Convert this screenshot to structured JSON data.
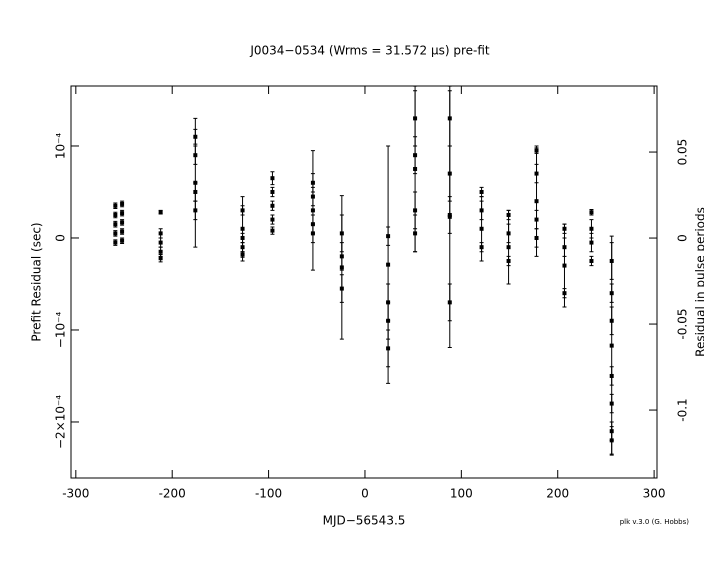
{
  "chart_data": {
    "type": "scatter",
    "title": "J0034−0534 (Wrms = 31.572 μs) pre-fit",
    "xlabel": "MJD−56543.5",
    "ylabel": "Prefit Residual (sec)",
    "y2label": "Residual in pulse periods",
    "footer": "plk v.3.0 (G. Hobbs)",
    "color": "#000000",
    "xlim": [
      -305,
      303
    ],
    "ylim": [
      0.0001652,
      -0.0002609
    ],
    "y2lim": [
      0.0884,
      -0.1395
    ],
    "xticks": [
      -300,
      -200,
      -100,
      0,
      100,
      200,
      300
    ],
    "yticks": [
      {
        "value": 0.0001,
        "label": "10⁻⁴"
      },
      0,
      {
        "value": -0.0001,
        "label": "−10⁻⁴"
      },
      {
        "value": -0.0002,
        "label": "−2×10⁻⁴"
      }
    ],
    "y2ticks": [
      0.05,
      0,
      -0.05,
      -0.1
    ],
    "x": [
      -259,
      -259,
      -259,
      -259,
      -259,
      -252,
      -252,
      -252,
      -252,
      -252,
      -212,
      -212,
      -212,
      -212,
      -212,
      -176,
      -176,
      -176,
      -176,
      -176,
      -127,
      -127,
      -127,
      -127,
      -127,
      -96,
      -96,
      -96,
      -96,
      -96,
      -54,
      -54,
      -54,
      -54,
      -54,
      -24,
      -24,
      -24,
      -24,
      24,
      24,
      24,
      24,
      24,
      52,
      52,
      52,
      52,
      52,
      88,
      88,
      88,
      88,
      88,
      121,
      121,
      121,
      121,
      149,
      149,
      149,
      149,
      178,
      178,
      178,
      178,
      178,
      207,
      207,
      207,
      207,
      235,
      235,
      235,
      235,
      256,
      256,
      256,
      256,
      256,
      256,
      256,
      256
    ],
    "values": [
      3.5e-05,
      2.5e-05,
      1.5e-05,
      5e-06,
      -5e-06,
      3.7e-05,
      2.7e-05,
      1.7e-05,
      7e-06,
      -3e-06,
      2.8e-05,
      5e-06,
      -5e-06,
      -1.5e-05,
      -2.2e-05,
      0.00011,
      9e-05,
      6e-05,
      5e-05,
      3e-05,
      3e-05,
      1e-05,
      0,
      -1e-05,
      -1.8e-05,
      6.5e-05,
      5e-05,
      3.5e-05,
      2e-05,
      8e-06,
      6e-05,
      4.5e-05,
      3e-05,
      1.5e-05,
      5e-06,
      5e-06,
      -2e-05,
      -3.2e-05,
      -5.5e-05,
      2e-06,
      -2.9e-05,
      -7e-05,
      -9e-05,
      -0.00012,
      0.00013,
      9e-05,
      7.5e-05,
      3e-05,
      5e-06,
      0.00013,
      7e-05,
      2.3e-05,
      2.5e-05,
      -7e-05,
      5e-05,
      3e-05,
      1e-05,
      -1e-05,
      2.5e-05,
      5e-06,
      -1e-05,
      -2.5e-05,
      9.5e-05,
      7e-05,
      4e-05,
      2e-05,
      0,
      1e-05,
      -1e-05,
      -3e-05,
      -6e-05,
      2.8e-05,
      1e-05,
      -5e-06,
      -2.5e-05,
      -2.5e-05,
      -6e-05,
      -9e-05,
      -0.000117,
      -0.00015,
      -0.00018,
      -0.00021,
      -0.00022
    ],
    "errors": [
      3e-06,
      3e-06,
      3e-06,
      3e-06,
      3e-06,
      3e-06,
      3e-06,
      3e-06,
      3e-06,
      3e-06,
      2e-06,
      5e-06,
      5e-06,
      5e-06,
      4e-06,
      8e-06,
      1e-05,
      7e-05,
      1e-05,
      1e-05,
      5e-06,
      3.5e-05,
      5e-06,
      5e-06,
      3e-06,
      7e-06,
      5e-06,
      5e-06,
      5e-06,
      4e-06,
      1e-05,
      1e-05,
      6.5e-05,
      1e-05,
      1e-05,
      2e-05,
      1.5e-05,
      7.8e-05,
      1.5e-05,
      1e-05,
      0.000129,
      2e-05,
      2e-05,
      2e-05,
      3e-05,
      2e-05,
      9e-05,
      2e-05,
      2e-05,
      3e-05,
      3e-05,
      0.000142,
      2e-05,
      2e-05,
      5e-06,
      1e-05,
      3.5e-05,
      5e-06,
      5e-06,
      1e-05,
      4e-05,
      5e-06,
      3e-06,
      1e-05,
      6e-05,
      1e-05,
      1e-05,
      5e-06,
      1e-05,
      4.5e-05,
      5e-06,
      3e-06,
      1e-05,
      1e-05,
      5e-06,
      2e-05,
      1e-05,
      1.5e-05,
      0.000119,
      1e-05,
      1e-05,
      1e-05,
      1.5e-05
    ]
  }
}
